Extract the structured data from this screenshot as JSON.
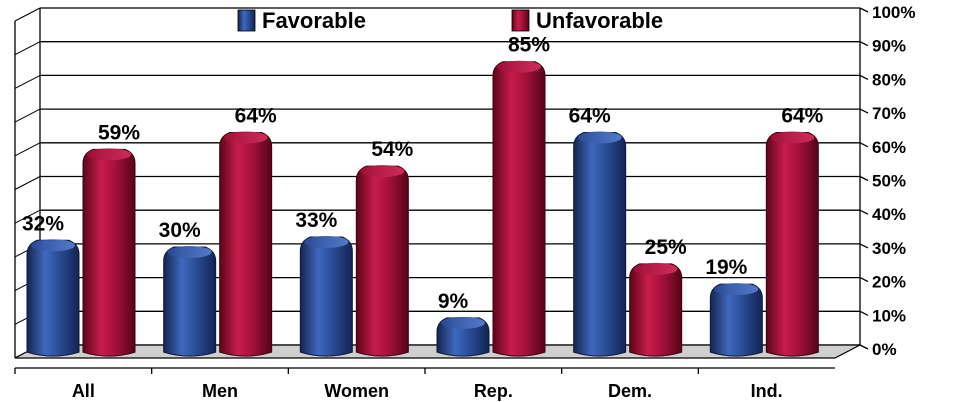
{
  "chart_data": {
    "type": "bar",
    "categories": [
      "All",
      "Men",
      "Women",
      "Rep.",
      "Dem.",
      "Ind."
    ],
    "series": [
      {
        "name": "Favorable",
        "values": [
          32,
          30,
          33,
          9,
          64,
          19
        ],
        "labels": [
          "32%",
          "30%",
          "33%",
          "9%",
          "64%",
          "19%"
        ],
        "color": "#2b4f9a"
      },
      {
        "name": "Unfavorable",
        "values": [
          59,
          64,
          54,
          85,
          25,
          64
        ],
        "labels": [
          "59%",
          "64%",
          "54%",
          "85%",
          "25%",
          "64%"
        ],
        "color": "#a8123c"
      }
    ],
    "ylim": [
      0,
      100
    ],
    "yticks": [
      "0%",
      "10%",
      "20%",
      "30%",
      "40%",
      "50%",
      "60%",
      "70%",
      "80%",
      "90%",
      "100%"
    ],
    "grid": true,
    "legend_position": "top",
    "style": "3d-cylinder-bars"
  }
}
